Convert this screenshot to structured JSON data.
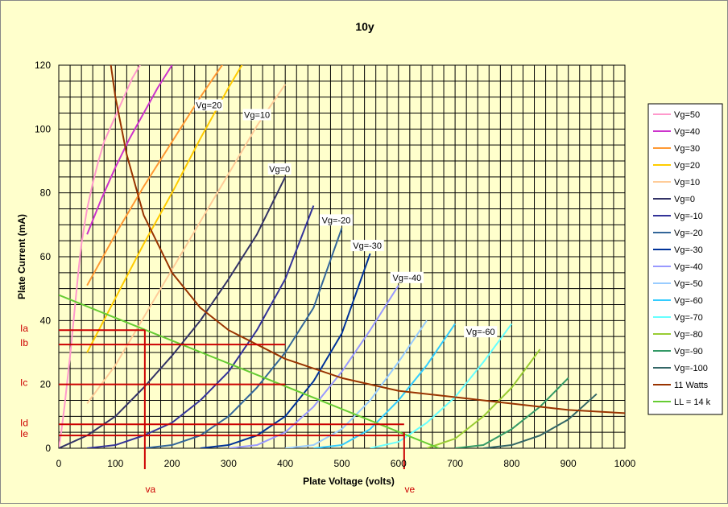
{
  "chart_data": {
    "type": "line",
    "title": "10y",
    "xlabel": "Plate Voltage (volts)",
    "ylabel": "Plate Current (mA)",
    "xlim": [
      0,
      1000
    ],
    "ylim": [
      0,
      120
    ],
    "x_ticks": [
      "0",
      "100",
      "200",
      "300",
      "400",
      "500",
      "600",
      "700",
      "800",
      "900",
      "1000"
    ],
    "y_ticks": [
      "0",
      "20",
      "40",
      "60",
      "80",
      "100",
      "120"
    ],
    "grid": true,
    "legend_position": "right",
    "series": [
      {
        "name": "Vg=50",
        "color": "#ff99cc",
        "x": [
          0,
          5,
          10,
          15,
          20,
          25,
          30,
          35,
          40,
          50,
          60,
          70,
          80,
          90,
          100,
          110,
          120,
          130,
          140,
          150,
          160,
          170,
          180
        ],
        "y": [
          0,
          6,
          13,
          21,
          29,
          38,
          47,
          56,
          64,
          75,
          83,
          90,
          96,
          100,
          104,
          108,
          112,
          116,
          119,
          122,
          125,
          128,
          131
        ]
      },
      {
        "name": "Vg=40",
        "color": "#cc33cc",
        "x": [
          50,
          75,
          100,
          125,
          150,
          175,
          200
        ],
        "y": [
          67,
          78,
          88,
          97,
          105,
          113,
          120
        ]
      },
      {
        "name": "Vg=30",
        "color": "#ff9933",
        "x": [
          50,
          100,
          150,
          200,
          250,
          300
        ],
        "y": [
          51,
          67,
          82,
          96,
          110,
          123
        ]
      },
      {
        "name": "Vg=20",
        "color": "#ffcc00",
        "x": [
          50,
          100,
          150,
          200,
          250,
          300,
          350
        ],
        "y": [
          30,
          47,
          64,
          80,
          97,
          113,
          128
        ]
      },
      {
        "name": "Vg=10",
        "color": "#ffcc99",
        "x": [
          50,
          100,
          150,
          200,
          250,
          300,
          350,
          400
        ],
        "y": [
          14,
          26,
          41,
          56,
          71,
          86,
          101,
          114
        ]
      },
      {
        "name": "Vg=0",
        "color": "#333366",
        "x": [
          0,
          50,
          100,
          150,
          200,
          250,
          300,
          350,
          400
        ],
        "y": [
          0,
          4,
          10,
          19,
          29,
          40,
          53,
          67,
          85
        ]
      },
      {
        "name": "Vg=-10",
        "color": "#333399",
        "x": [
          50,
          100,
          150,
          200,
          250,
          300,
          350,
          400,
          450
        ],
        "y": [
          0,
          1,
          4,
          8,
          15,
          24,
          37,
          53,
          76
        ]
      },
      {
        "name": "Vg=-20",
        "color": "#336699",
        "x": [
          150,
          200,
          250,
          300,
          350,
          400,
          450,
          500
        ],
        "y": [
          0,
          1,
          4,
          10,
          19,
          30,
          44,
          69
        ]
      },
      {
        "name": "Vg=-30",
        "color": "#003399",
        "x": [
          250,
          300,
          350,
          400,
          450,
          500,
          550
        ],
        "y": [
          0,
          1,
          4,
          10,
          21,
          36,
          61
        ]
      },
      {
        "name": "Vg=-40",
        "color": "#9999ff",
        "x": [
          300,
          350,
          400,
          450,
          500,
          550,
          600
        ],
        "y": [
          0,
          1,
          5,
          13,
          24,
          37,
          51
        ]
      },
      {
        "name": "Vg=-50",
        "color": "#99ccff",
        "x": [
          400,
          450,
          500,
          550,
          600,
          650
        ],
        "y": [
          0,
          1,
          6,
          15,
          27,
          40
        ]
      },
      {
        "name": "Vg=-60",
        "color": "#33ccff",
        "x": [
          450,
          500,
          550,
          600,
          650,
          700
        ],
        "y": [
          0,
          1,
          6,
          15,
          26,
          39
        ]
      },
      {
        "name": "Vg=-70",
        "color": "#66ffff",
        "x": [
          550,
          600,
          650,
          700,
          750,
          800
        ],
        "y": [
          0,
          2,
          8,
          16,
          27,
          39
        ]
      },
      {
        "name": "Vg=-80",
        "color": "#99cc33",
        "x": [
          650,
          700,
          750,
          800,
          850
        ],
        "y": [
          0,
          3,
          10,
          19,
          31
        ]
      },
      {
        "name": "Vg=-90",
        "color": "#339966",
        "x": [
          700,
          750,
          800,
          850,
          900
        ],
        "y": [
          0,
          1,
          6,
          13,
          22
        ]
      },
      {
        "name": "Vg=-100",
        "color": "#336666",
        "x": [
          750,
          800,
          850,
          900,
          950
        ],
        "y": [
          0,
          1,
          4,
          9,
          17
        ]
      },
      {
        "name": "11 Watts",
        "color": "#993300",
        "x": [
          92,
          100,
          120,
          150,
          200,
          250,
          300,
          400,
          500,
          600,
          700,
          800,
          900,
          1000
        ],
        "y": [
          120,
          110,
          92,
          73,
          55,
          44,
          37,
          28,
          22,
          18,
          16,
          14,
          12,
          11
        ]
      },
      {
        "name": "LL = 14 k",
        "color": "#66cc33",
        "x": [
          0,
          672
        ],
        "y": [
          48,
          0
        ]
      }
    ],
    "curve_labels": [
      {
        "text": "Vg=20",
        "x": 265,
        "y": 107
      },
      {
        "text": "Vg=10",
        "x": 350,
        "y": 104
      },
      {
        "text": "Vg=0",
        "x": 390,
        "y": 87
      },
      {
        "text": "Vg=-20",
        "x": 490,
        "y": 71
      },
      {
        "text": "Vg=-30",
        "x": 545,
        "y": 63
      },
      {
        "text": "Vg=-40",
        "x": 615,
        "y": 53
      },
      {
        "text": "Vg=-60",
        "x": 745,
        "y": 36
      }
    ],
    "markers": {
      "color": "#cc0000",
      "horizontal": [
        {
          "label": "Ia",
          "y": 37,
          "x_end": 152
        },
        {
          "label": "Ib",
          "y": 32.5,
          "x_end": 400
        },
        {
          "label": "Ic",
          "y": 20,
          "x_end": 400
        },
        {
          "label": "Id",
          "y": 7.5,
          "x_end": 610
        },
        {
          "label": "Ie",
          "y": 4,
          "x_end": 610
        }
      ],
      "vertical": [
        {
          "label": "va",
          "x": 152,
          "y_end": 37
        },
        {
          "label": "ve",
          "x": 610,
          "y_end": 5
        }
      ]
    }
  }
}
